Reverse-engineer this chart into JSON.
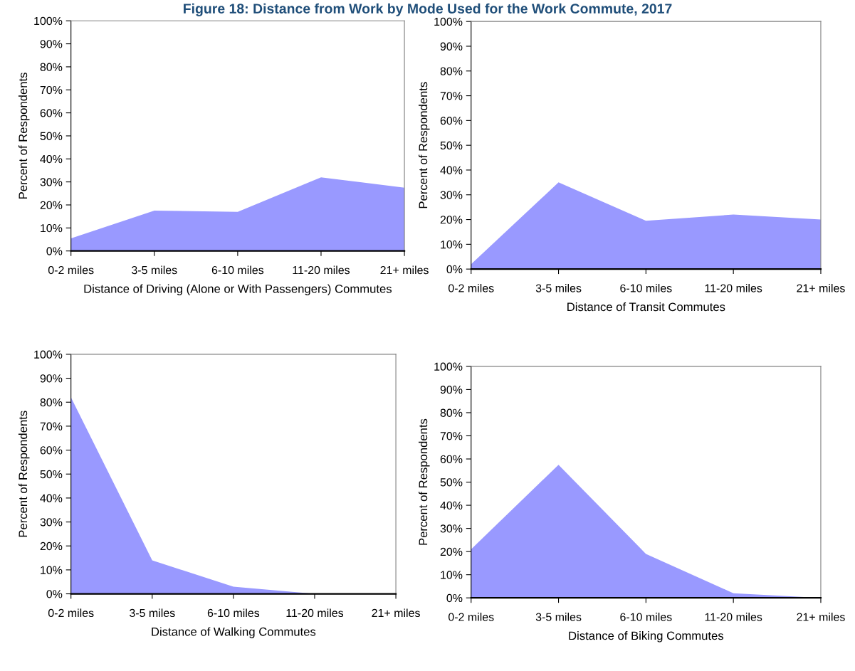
{
  "chart_data": [
    {
      "type": "area",
      "title": "Figure 18: Distance from Work by Mode Used for the Work Commute, 2017",
      "xlabel": "Distance of Driving (Alone or With Passengers) Commutes",
      "ylabel": "Percent of Respondents",
      "categories": [
        "0-2 miles",
        "3-5 miles",
        "6-10 miles",
        "11-20 miles",
        "21+ miles"
      ],
      "values": [
        5.5,
        17.5,
        17,
        32,
        27.5
      ],
      "color": "#9999ff",
      "ylim": [
        0,
        100
      ],
      "yticks": [
        {
          "value": 0,
          "label": "0%"
        },
        {
          "value": 10,
          "label": "10%"
        },
        {
          "value": 20,
          "label": "20%"
        },
        {
          "value": 30,
          "label": "30%"
        },
        {
          "value": 40,
          "label": "40%"
        },
        {
          "value": 50,
          "label": "50%"
        },
        {
          "value": 60,
          "label": "60%"
        },
        {
          "value": 70,
          "label": "70%"
        },
        {
          "value": 80,
          "label": "80%"
        },
        {
          "value": 90,
          "label": "90%"
        },
        {
          "value": 100,
          "label": "100%"
        }
      ],
      "grid": false,
      "legend": false
    },
    {
      "type": "area",
      "xlabel": "Distance of Transit Commutes",
      "ylabel": "Percent of Respondents",
      "categories": [
        "0-2 miles",
        "3-5 miles",
        "6-10 miles",
        "11-20 miles",
        "21+ miles"
      ],
      "values": [
        2,
        35,
        19.5,
        22,
        20
      ],
      "color": "#9999ff",
      "ylim": [
        0,
        100
      ],
      "yticks": [
        {
          "value": 0,
          "label": "0%"
        },
        {
          "value": 10,
          "label": "10%"
        },
        {
          "value": 20,
          "label": "20%"
        },
        {
          "value": 30,
          "label": "30%"
        },
        {
          "value": 40,
          "label": "40%"
        },
        {
          "value": 50,
          "label": "50%"
        },
        {
          "value": 60,
          "label": "60%"
        },
        {
          "value": 70,
          "label": "70%"
        },
        {
          "value": 80,
          "label": "80%"
        },
        {
          "value": 90,
          "label": "90%"
        },
        {
          "value": 100,
          "label": "100%"
        }
      ],
      "grid": false,
      "legend": false
    },
    {
      "type": "area",
      "xlabel": "Distance of Walking Commutes",
      "ylabel": "Percent of Respondents",
      "categories": [
        "0-2 miles",
        "3-5 miles",
        "6-10 miles",
        "11-20 miles",
        "21+ miles"
      ],
      "values": [
        82,
        14,
        3,
        0,
        0
      ],
      "color": "#9999ff",
      "ylim": [
        0,
        100
      ],
      "yticks": [
        {
          "value": 0,
          "label": "0%"
        },
        {
          "value": 10,
          "label": "10%"
        },
        {
          "value": 20,
          "label": "20%"
        },
        {
          "value": 30,
          "label": "30%"
        },
        {
          "value": 40,
          "label": "40%"
        },
        {
          "value": 50,
          "label": "50%"
        },
        {
          "value": 60,
          "label": "60%"
        },
        {
          "value": 70,
          "label": "70%"
        },
        {
          "value": 80,
          "label": "80%"
        },
        {
          "value": 90,
          "label": "90%"
        },
        {
          "value": 100,
          "label": "100%"
        }
      ],
      "grid": false,
      "legend": false
    },
    {
      "type": "area",
      "xlabel": "Distance of Biking Commutes",
      "ylabel": "Percent of Respondents",
      "categories": [
        "0-2 miles",
        "3-5 miles",
        "6-10 miles",
        "11-20 miles",
        "21+ miles"
      ],
      "values": [
        21,
        57.5,
        19,
        2,
        0
      ],
      "color": "#9999ff",
      "ylim": [
        0,
        100
      ],
      "yticks": [
        {
          "value": 0,
          "label": "0%"
        },
        {
          "value": 10,
          "label": "10%"
        },
        {
          "value": 20,
          "label": "20%"
        },
        {
          "value": 30,
          "label": "30%"
        },
        {
          "value": 40,
          "label": "40%"
        },
        {
          "value": 50,
          "label": "50%"
        },
        {
          "value": 60,
          "label": "60%"
        },
        {
          "value": 70,
          "label": "70%"
        },
        {
          "value": 80,
          "label": "80%"
        },
        {
          "value": 90,
          "label": "90%"
        },
        {
          "value": 100,
          "label": "100%"
        }
      ],
      "grid": false,
      "legend": false
    }
  ]
}
